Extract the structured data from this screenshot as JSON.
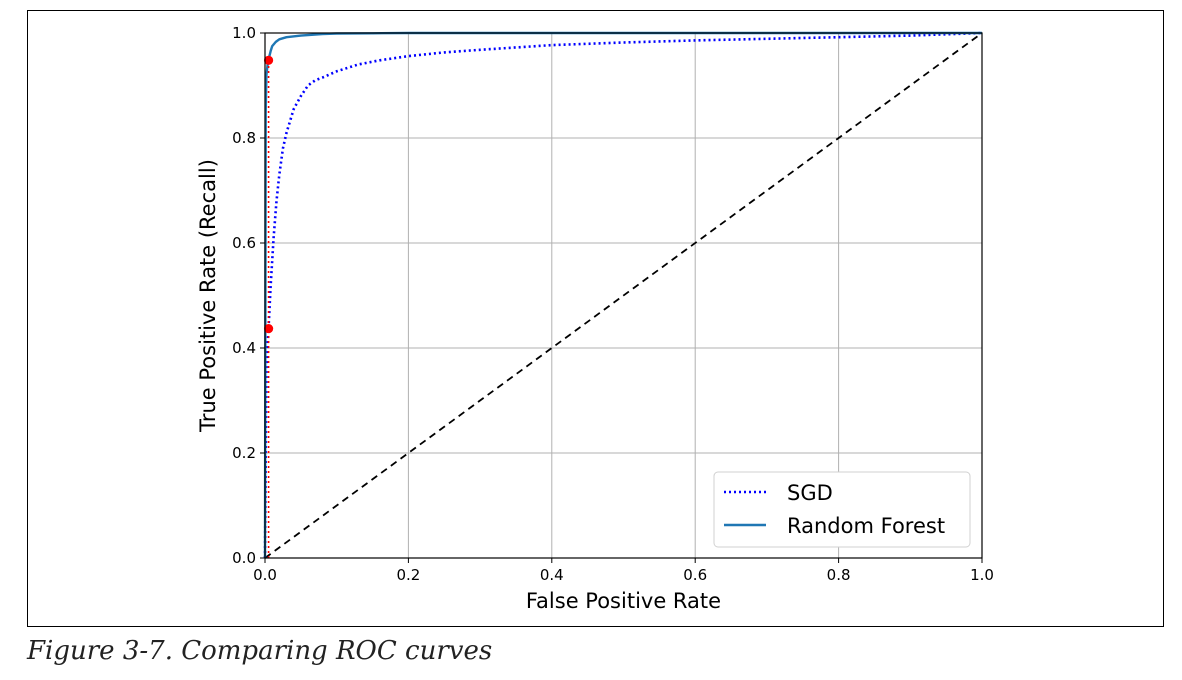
{
  "caption": "Figure 3-7. Comparing ROC curves",
  "chart_data": {
    "type": "line",
    "title": "",
    "xlabel": "False Positive Rate",
    "ylabel": "True Positive Rate (Recall)",
    "xlim": [
      0,
      1
    ],
    "ylim": [
      0,
      1
    ],
    "xticks": [
      "0.0",
      "0.2",
      "0.4",
      "0.6",
      "0.8",
      "1.0"
    ],
    "yticks": [
      "0.0",
      "0.2",
      "0.4",
      "0.6",
      "0.8",
      "1.0"
    ],
    "grid": true,
    "legend_position": "lower-right",
    "series": [
      {
        "name": "SGD",
        "style": "dotted",
        "color": "#0000ff",
        "x": [
          0,
          0.002,
          0.005,
          0.008,
          0.012,
          0.016,
          0.02,
          0.025,
          0.03,
          0.04,
          0.05,
          0.06,
          0.07,
          0.08,
          0.1,
          0.13,
          0.16,
          0.2,
          0.25,
          0.3,
          0.4,
          0.5,
          0.6,
          0.7,
          0.8,
          0.9,
          1.0
        ],
        "y": [
          0,
          0.36,
          0.44,
          0.52,
          0.61,
          0.68,
          0.73,
          0.78,
          0.81,
          0.855,
          0.88,
          0.9,
          0.91,
          0.915,
          0.927,
          0.94,
          0.948,
          0.956,
          0.963,
          0.968,
          0.977,
          0.982,
          0.986,
          0.989,
          0.992,
          0.995,
          1.0
        ]
      },
      {
        "name": "Random Forest",
        "style": "solid",
        "color": "#1f77b4",
        "x": [
          0,
          0.001,
          0.002,
          0.004,
          0.006,
          0.008,
          0.01,
          0.015,
          0.02,
          0.03,
          0.05,
          0.08,
          0.1,
          0.15,
          0.2,
          0.3,
          0.5,
          0.7,
          1.0
        ],
        "y": [
          0,
          0.85,
          0.92,
          0.945,
          0.955,
          0.966,
          0.975,
          0.983,
          0.988,
          0.992,
          0.995,
          0.998,
          0.999,
          0.9995,
          1.0,
          1.0,
          1.0,
          1.0,
          1.0
        ]
      },
      {
        "name": "",
        "style": "dashed",
        "color": "#000000",
        "x": [
          0,
          1
        ],
        "y": [
          0,
          1
        ]
      }
    ],
    "markers": [
      {
        "x": 0.005,
        "y": 0.437,
        "color": "#ff0000"
      },
      {
        "x": 0.005,
        "y": 0.948,
        "color": "#ff0000"
      }
    ],
    "reference_lines": [
      {
        "x": 0.005,
        "y_from": 0,
        "y_to": 0.948,
        "style": "dotted",
        "color": "#ff0000"
      }
    ]
  }
}
